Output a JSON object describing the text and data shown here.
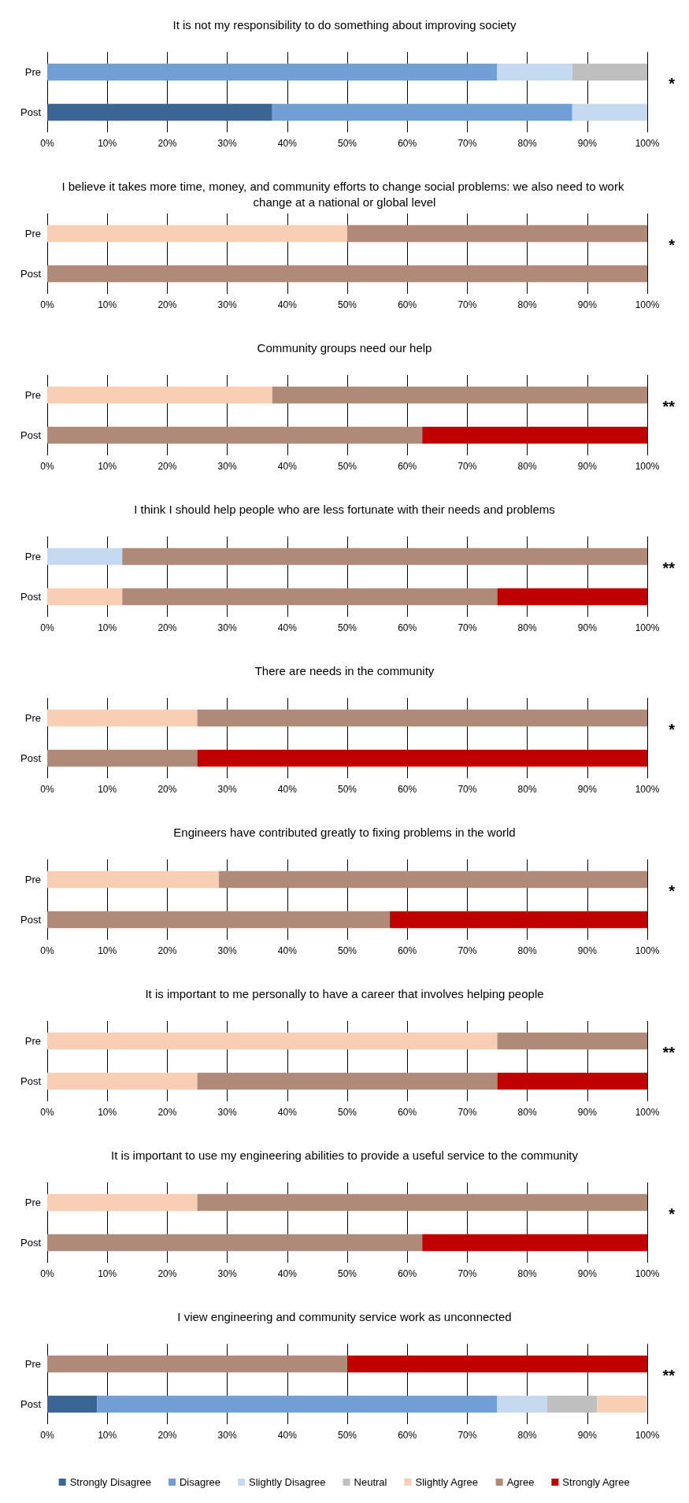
{
  "chart_data": [
    {
      "type": "bar",
      "orientation": "horizontal",
      "stacked": true,
      "title": "It is not my responsibility to do something about improving society",
      "categories": [
        "Pre",
        "Post"
      ],
      "xlim": [
        0,
        100
      ],
      "xticks": [
        {
          "value": 0,
          "label": "0%"
        },
        {
          "value": 10,
          "label": "10%"
        },
        {
          "value": 20,
          "label": "20%"
        },
        {
          "value": 30,
          "label": "30%"
        },
        {
          "value": 40,
          "label": "40%"
        },
        {
          "value": 50,
          "label": "50%"
        },
        {
          "value": 60,
          "label": "60%"
        },
        {
          "value": 70,
          "label": "70%"
        },
        {
          "value": 80,
          "label": "80%"
        },
        {
          "value": 90,
          "label": "90%"
        },
        {
          "value": 100,
          "label": "100%"
        }
      ],
      "grid": "x",
      "legend": false,
      "annotations": [
        "*"
      ],
      "series": [
        {
          "color": "#3a6595",
          "values": [
            null,
            37.5
          ]
        },
        {
          "color": "#6f9fd4",
          "values": [
            75,
            50
          ]
        },
        {
          "color": "#c5daf0",
          "values": [
            12.5,
            12.5
          ]
        },
        {
          "color": "#bfbfbf",
          "values": [
            12.5,
            null
          ]
        }
      ]
    },
    {
      "type": "bar",
      "orientation": "horizontal",
      "stacked": true,
      "title": "I believe it takes more time, money, and community efforts to change social problems: we also need to work change at a national or global level",
      "categories": [
        "Pre",
        "Post"
      ],
      "xlim": [
        0,
        100
      ],
      "xticks": [
        {
          "value": 0,
          "label": "0%"
        },
        {
          "value": 10,
          "label": "10%"
        },
        {
          "value": 20,
          "label": "20%"
        },
        {
          "value": 30,
          "label": "30%"
        },
        {
          "value": 40,
          "label": "40%"
        },
        {
          "value": 50,
          "label": "50%"
        },
        {
          "value": 60,
          "label": "60%"
        },
        {
          "value": 70,
          "label": "70%"
        },
        {
          "value": 80,
          "label": "80%"
        },
        {
          "value": 90,
          "label": "90%"
        },
        {
          "value": 100,
          "label": "100%"
        }
      ],
      "grid": "x",
      "legend": false,
      "annotations": [
        "*"
      ],
      "series": [
        {
          "color": "#f8cfb4",
          "values": [
            50,
            null
          ]
        },
        {
          "color": "#b08a78",
          "values": [
            50,
            100
          ]
        }
      ]
    },
    {
      "type": "bar",
      "orientation": "horizontal",
      "stacked": true,
      "title": "Community groups need our help",
      "categories": [
        "Pre",
        "Post"
      ],
      "xlim": [
        0,
        100
      ],
      "xticks": [
        {
          "value": 0,
          "label": "0%"
        },
        {
          "value": 10,
          "label": "10%"
        },
        {
          "value": 20,
          "label": "20%"
        },
        {
          "value": 30,
          "label": "30%"
        },
        {
          "value": 40,
          "label": "40%"
        },
        {
          "value": 50,
          "label": "50%"
        },
        {
          "value": 60,
          "label": "60%"
        },
        {
          "value": 70,
          "label": "70%"
        },
        {
          "value": 80,
          "label": "80%"
        },
        {
          "value": 90,
          "label": "90%"
        },
        {
          "value": 100,
          "label": "100%"
        }
      ],
      "grid": "x",
      "legend": false,
      "annotations": [
        "**"
      ],
      "series": [
        {
          "color": "#f8cfb4",
          "values": [
            37.5,
            null
          ]
        },
        {
          "color": "#b08a78",
          "values": [
            62.5,
            62.5
          ]
        },
        {
          "color": "#c00000",
          "values": [
            null,
            37.5
          ]
        }
      ]
    },
    {
      "type": "bar",
      "orientation": "horizontal",
      "stacked": true,
      "title": "I think I should help people who are less fortunate with their needs and problems",
      "categories": [
        "Pre",
        "Post"
      ],
      "xlim": [
        0,
        100
      ],
      "xticks": [
        {
          "value": 0,
          "label": "0%"
        },
        {
          "value": 10,
          "label": "10%"
        },
        {
          "value": 20,
          "label": "20%"
        },
        {
          "value": 30,
          "label": "30%"
        },
        {
          "value": 40,
          "label": "40%"
        },
        {
          "value": 50,
          "label": "50%"
        },
        {
          "value": 60,
          "label": "60%"
        },
        {
          "value": 70,
          "label": "70%"
        },
        {
          "value": 80,
          "label": "80%"
        },
        {
          "value": 90,
          "label": "90%"
        },
        {
          "value": 100,
          "label": "100%"
        }
      ],
      "grid": "x",
      "legend": false,
      "annotations": [
        "**"
      ],
      "series": [
        {
          "color": "#c5daf0",
          "values": [
            12.5,
            null
          ]
        },
        {
          "color": "#f8cfb4",
          "values": [
            null,
            12.5
          ]
        },
        {
          "color": "#b08a78",
          "values": [
            87.5,
            62.5
          ]
        },
        {
          "color": "#c00000",
          "values": [
            null,
            25
          ]
        }
      ]
    },
    {
      "type": "bar",
      "orientation": "horizontal",
      "stacked": true,
      "title": "There are needs in the community",
      "categories": [
        "Pre",
        "Post"
      ],
      "xlim": [
        0,
        100
      ],
      "xticks": [
        {
          "value": 0,
          "label": "0%"
        },
        {
          "value": 10,
          "label": "10%"
        },
        {
          "value": 20,
          "label": "20%"
        },
        {
          "value": 30,
          "label": "30%"
        },
        {
          "value": 40,
          "label": "40%"
        },
        {
          "value": 50,
          "label": "50%"
        },
        {
          "value": 60,
          "label": "60%"
        },
        {
          "value": 70,
          "label": "70%"
        },
        {
          "value": 80,
          "label": "80%"
        },
        {
          "value": 90,
          "label": "90%"
        },
        {
          "value": 100,
          "label": "100%"
        }
      ],
      "grid": "x",
      "legend": false,
      "annotations": [
        "*"
      ],
      "series": [
        {
          "color": "#f8cfb4",
          "values": [
            25,
            null
          ]
        },
        {
          "color": "#b08a78",
          "values": [
            75,
            25
          ]
        },
        {
          "color": "#c00000",
          "values": [
            null,
            75
          ]
        }
      ]
    },
    {
      "type": "bar",
      "orientation": "horizontal",
      "stacked": true,
      "title": "Engineers have contributed greatly to fixing problems in the world",
      "categories": [
        "Pre",
        "Post"
      ],
      "xlim": [
        0,
        100
      ],
      "xticks": [
        {
          "value": 0,
          "label": "0%"
        },
        {
          "value": 10,
          "label": "10%"
        },
        {
          "value": 20,
          "label": "20%"
        },
        {
          "value": 30,
          "label": "30%"
        },
        {
          "value": 40,
          "label": "40%"
        },
        {
          "value": 50,
          "label": "50%"
        },
        {
          "value": 60,
          "label": "60%"
        },
        {
          "value": 70,
          "label": "70%"
        },
        {
          "value": 80,
          "label": "80%"
        },
        {
          "value": 90,
          "label": "90%"
        },
        {
          "value": 100,
          "label": "100%"
        }
      ],
      "grid": "x",
      "legend": false,
      "annotations": [
        "*"
      ],
      "series": [
        {
          "color": "#f8cfb4",
          "values": [
            28.6,
            null
          ]
        },
        {
          "color": "#b08a78",
          "values": [
            71.4,
            57.1
          ]
        },
        {
          "color": "#c00000",
          "values": [
            null,
            42.9
          ]
        }
      ]
    },
    {
      "type": "bar",
      "orientation": "horizontal",
      "stacked": true,
      "title": "It is important to me personally to have a career that involves helping people",
      "categories": [
        "Pre",
        "Post"
      ],
      "xlim": [
        0,
        100
      ],
      "xticks": [
        {
          "value": 0,
          "label": "0%"
        },
        {
          "value": 10,
          "label": "10%"
        },
        {
          "value": 20,
          "label": "20%"
        },
        {
          "value": 30,
          "label": "30%"
        },
        {
          "value": 40,
          "label": "40%"
        },
        {
          "value": 50,
          "label": "50%"
        },
        {
          "value": 60,
          "label": "60%"
        },
        {
          "value": 70,
          "label": "70%"
        },
        {
          "value": 80,
          "label": "80%"
        },
        {
          "value": 90,
          "label": "90%"
        },
        {
          "value": 100,
          "label": "100%"
        }
      ],
      "grid": "x",
      "legend": false,
      "annotations": [
        "**"
      ],
      "series": [
        {
          "color": "#f8cfb4",
          "values": [
            75,
            25
          ]
        },
        {
          "color": "#b08a78",
          "values": [
            25,
            50
          ]
        },
        {
          "color": "#c00000",
          "values": [
            null,
            25
          ]
        }
      ]
    },
    {
      "type": "bar",
      "orientation": "horizontal",
      "stacked": true,
      "title": "It is important to use my engineering abilities to provide a useful service to the community",
      "categories": [
        "Pre",
        "Post"
      ],
      "xlim": [
        0,
        100
      ],
      "xticks": [
        {
          "value": 0,
          "label": "0%"
        },
        {
          "value": 10,
          "label": "10%"
        },
        {
          "value": 20,
          "label": "20%"
        },
        {
          "value": 30,
          "label": "30%"
        },
        {
          "value": 40,
          "label": "40%"
        },
        {
          "value": 50,
          "label": "50%"
        },
        {
          "value": 60,
          "label": "60%"
        },
        {
          "value": 70,
          "label": "70%"
        },
        {
          "value": 80,
          "label": "80%"
        },
        {
          "value": 90,
          "label": "90%"
        },
        {
          "value": 100,
          "label": "100%"
        }
      ],
      "grid": "x",
      "legend": false,
      "annotations": [
        "*"
      ],
      "series": [
        {
          "color": "#f8cfb4",
          "values": [
            25,
            null
          ]
        },
        {
          "color": "#b08a78",
          "values": [
            75,
            62.5
          ]
        },
        {
          "color": "#c00000",
          "values": [
            null,
            37.5
          ]
        }
      ]
    },
    {
      "type": "bar",
      "orientation": "horizontal",
      "stacked": true,
      "title": "I view engineering and community service work as unconnected",
      "categories": [
        "Pre",
        "Post"
      ],
      "xlim": [
        0,
        100
      ],
      "xticks": [
        {
          "value": 0,
          "label": "0%"
        },
        {
          "value": 10,
          "label": "10%"
        },
        {
          "value": 20,
          "label": "20%"
        },
        {
          "value": 30,
          "label": "30%"
        },
        {
          "value": 40,
          "label": "40%"
        },
        {
          "value": 50,
          "label": "50%"
        },
        {
          "value": 60,
          "label": "60%"
        },
        {
          "value": 70,
          "label": "70%"
        },
        {
          "value": 80,
          "label": "80%"
        },
        {
          "value": 90,
          "label": "90%"
        },
        {
          "value": 100,
          "label": "100%"
        }
      ],
      "grid": "x",
      "legend": "bottom",
      "annotations": [
        "**"
      ],
      "series": [
        {
          "name": "Strongly Disagree",
          "color": "#3a6595",
          "values": [
            null,
            8.3
          ]
        },
        {
          "name": "Disagree",
          "color": "#6f9fd4",
          "values": [
            null,
            66.7
          ]
        },
        {
          "name": "Slightly Disagree",
          "color": "#c5daf0",
          "values": [
            null,
            8.3
          ]
        },
        {
          "name": "Neutral",
          "color": "#bfbfbf",
          "values": [
            null,
            8.3
          ]
        },
        {
          "name": "Slightly Agree",
          "color": "#f8cfb4",
          "values": [
            null,
            8.3
          ]
        },
        {
          "name": "Agree",
          "color": "#b08a78",
          "values": [
            50,
            null
          ]
        },
        {
          "name": "Strongly Agree",
          "color": "#c00000",
          "values": [
            50,
            null
          ]
        }
      ]
    }
  ]
}
